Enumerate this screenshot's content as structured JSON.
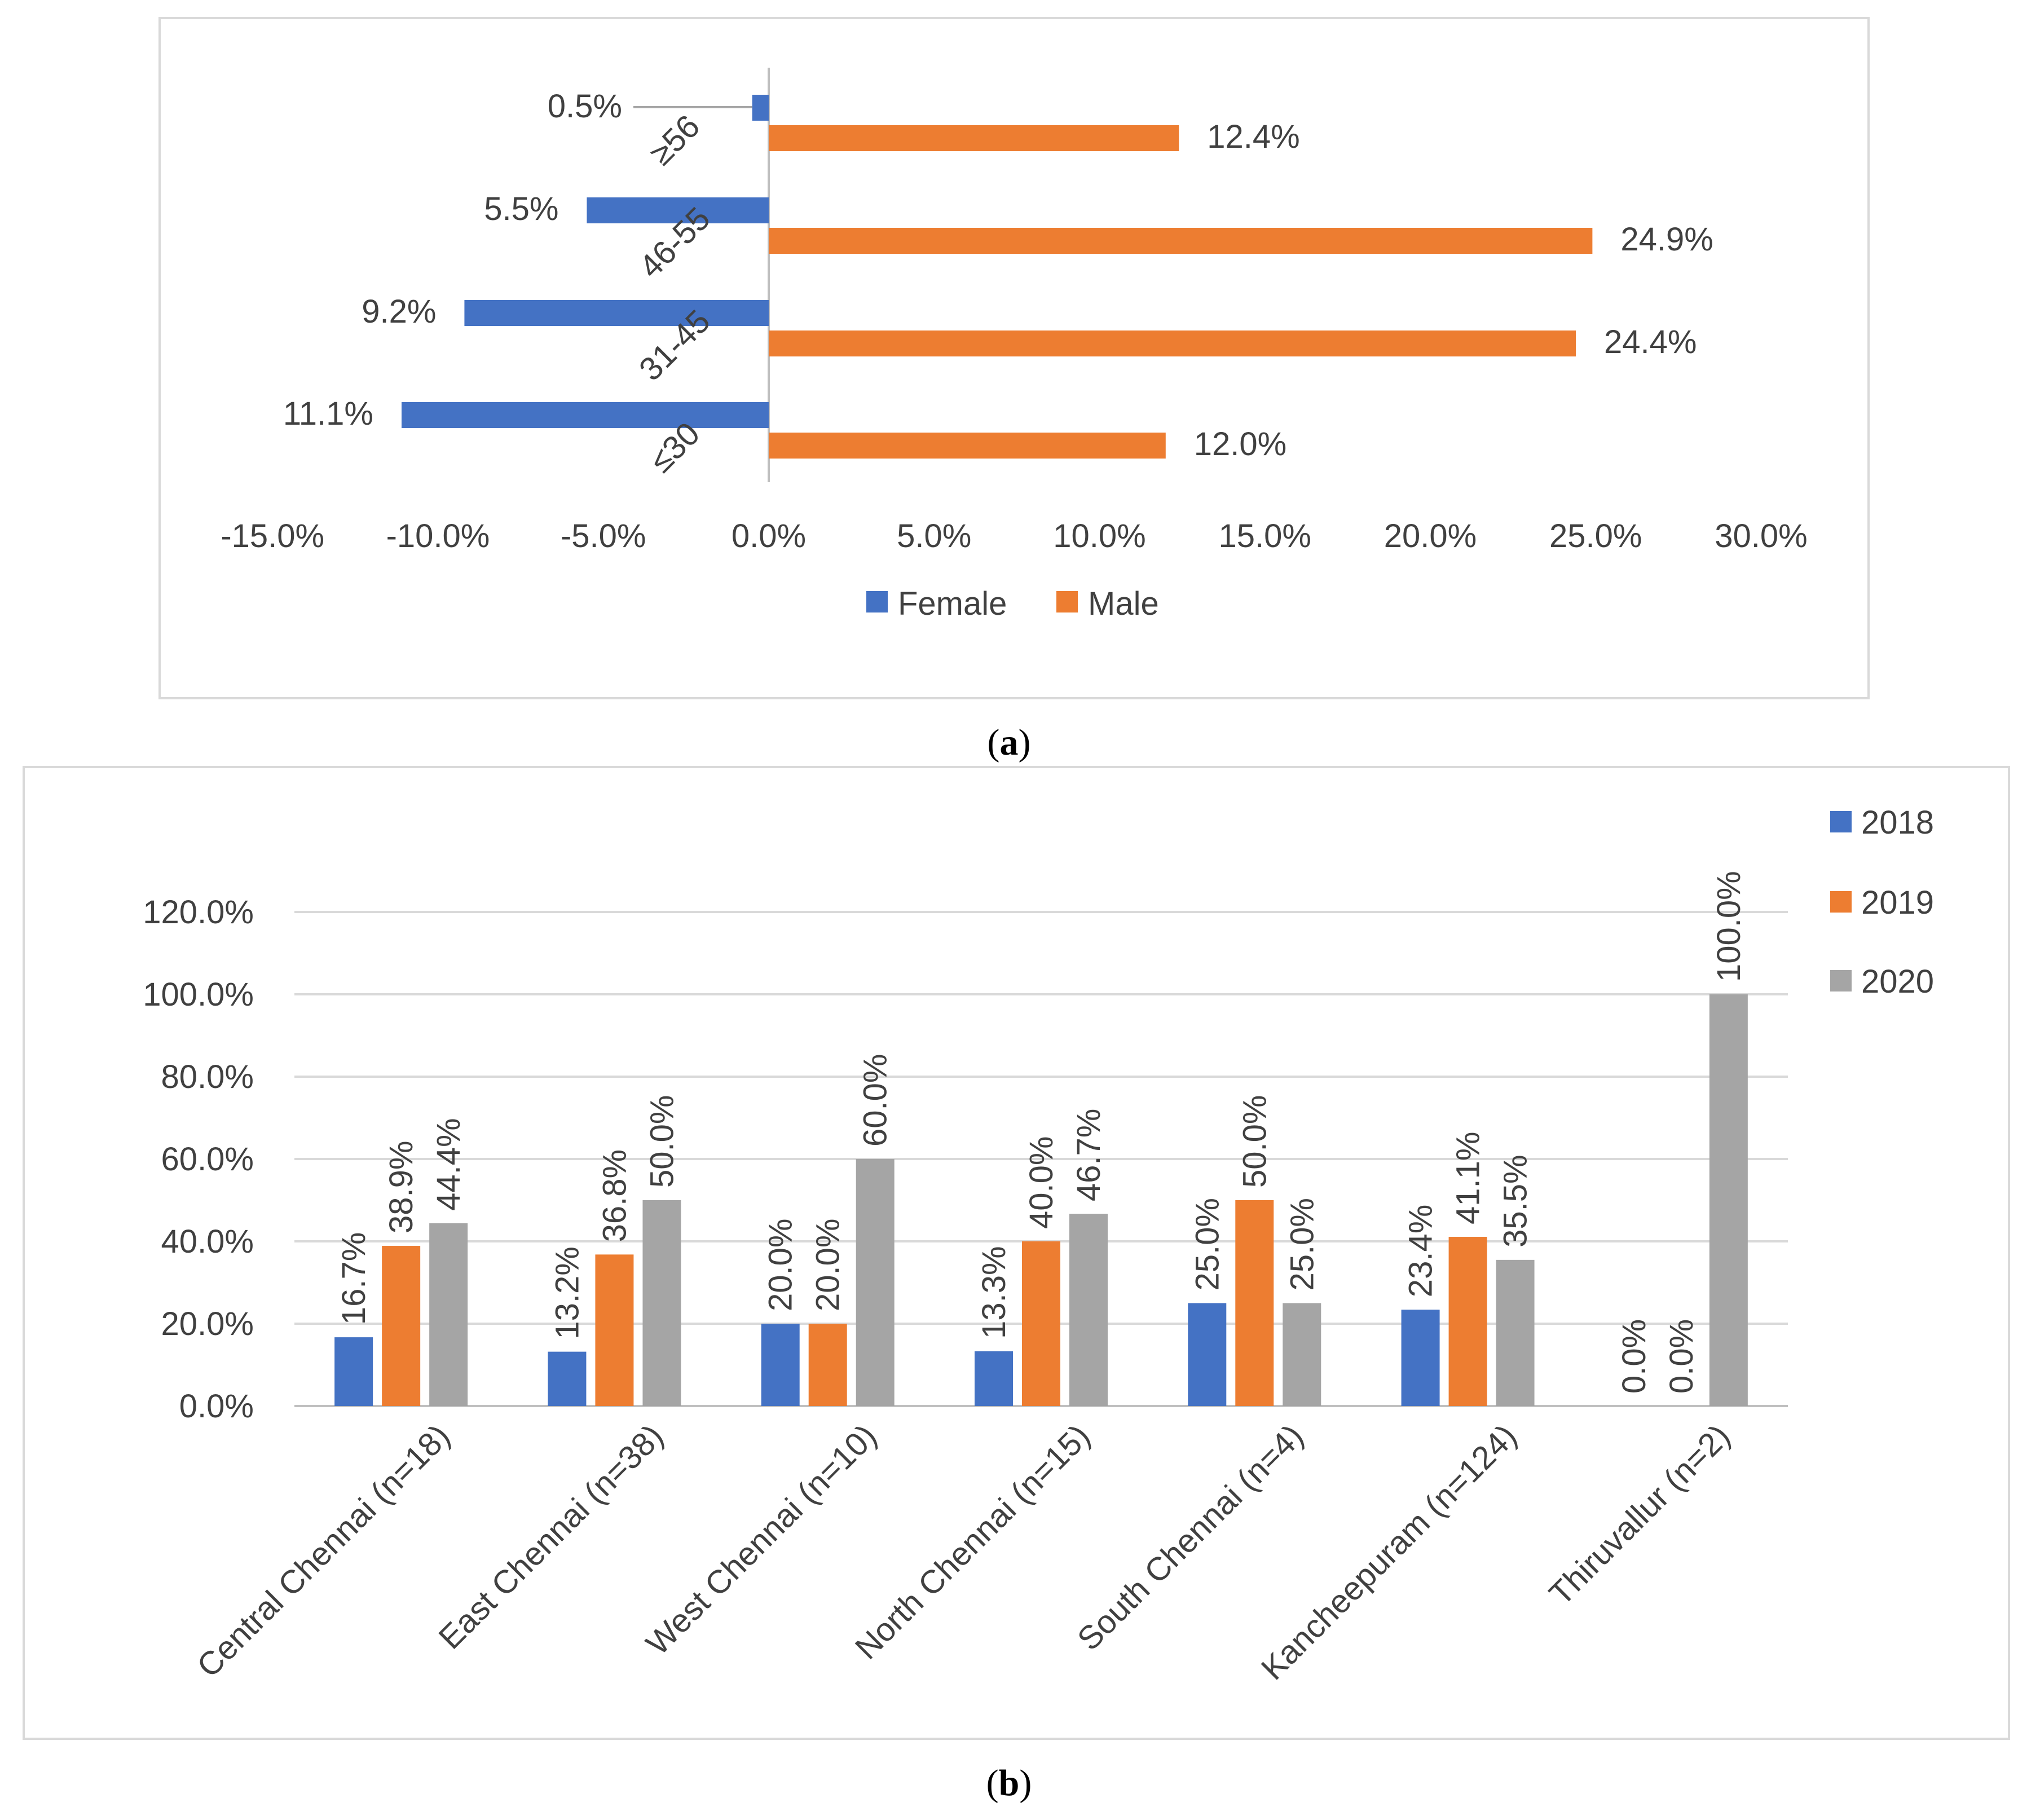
{
  "colors": {
    "female": "#4472c4",
    "male": "#ed7d31",
    "y2018": "#4472c4",
    "y2019": "#ed7d31",
    "y2020": "#a5a5a5",
    "text": "#404040",
    "axis": "#bfbfbf",
    "grid": "#d9d9d9",
    "frame": "#d9d9d9"
  },
  "captions": {
    "a": {
      "open": "(",
      "letter": "a",
      "close": ")"
    },
    "b": {
      "open": "(",
      "letter": "b",
      "close": ")"
    }
  },
  "chart_data": [
    {
      "id": "a",
      "type": "bar",
      "orientation": "horizontal",
      "categories": [
        "≥56",
        "46-55",
        "31-45",
        "≤30"
      ],
      "series": [
        {
          "name": "Female",
          "values": [
            -0.5,
            -5.5,
            -9.2,
            -11.1
          ],
          "labels": [
            "0.5%",
            "5.5%",
            "9.2%",
            "11.1%"
          ]
        },
        {
          "name": "Male",
          "values": [
            12.4,
            24.9,
            24.4,
            12.0
          ],
          "labels": [
            "12.4%",
            "24.9%",
            "24.4%",
            "12.0%"
          ]
        }
      ],
      "xlim": [
        -15,
        30
      ],
      "xticks": [
        -15,
        -10,
        -5,
        0,
        5,
        10,
        15,
        20,
        25,
        30
      ],
      "xtick_labels": [
        "-15.0%",
        "-10.0%",
        "-5.0%",
        "0.0%",
        "5.0%",
        "10.0%",
        "15.0%",
        "20.0%",
        "25.0%",
        "30.0%"
      ],
      "legend": [
        "Female",
        "Male"
      ],
      "legend_position": "bottom",
      "unit": "%"
    },
    {
      "id": "b",
      "type": "bar",
      "orientation": "vertical",
      "categories": [
        "Central Chennai (n=18)",
        "East Chennai (n=38)",
        "West Chennai (n=10)",
        "North Chennai (n=15)",
        "South Chennai (n=4)",
        "Kancheepuram (n=124)",
        "Thiruvallur (n=2)"
      ],
      "series": [
        {
          "name": "2018",
          "values": [
            16.7,
            13.2,
            20.0,
            13.3,
            25.0,
            23.4,
            0.0
          ],
          "labels": [
            "16.7%",
            "13.2%",
            "20.0%",
            "13.3%",
            "25.0%",
            "23.4%",
            "0.0%"
          ]
        },
        {
          "name": "2019",
          "values": [
            38.9,
            36.8,
            20.0,
            40.0,
            50.0,
            41.1,
            0.0
          ],
          "labels": [
            "38.9%",
            "36.8%",
            "20.0%",
            "40.0%",
            "50.0%",
            "41.1%",
            "0.0%"
          ]
        },
        {
          "name": "2020",
          "values": [
            44.4,
            50.0,
            60.0,
            46.7,
            25.0,
            35.5,
            100.0
          ],
          "labels": [
            "44.4%",
            "50.0%",
            "60.0%",
            "46.7%",
            "25.0%",
            "35.5%",
            "100.0%"
          ]
        }
      ],
      "ylim": [
        0,
        120
      ],
      "yticks": [
        0,
        20,
        40,
        60,
        80,
        100,
        120
      ],
      "ytick_labels": [
        "0.0%",
        "20.0%",
        "40.0%",
        "60.0%",
        "80.0%",
        "100.0%",
        "120.0%"
      ],
      "legend": [
        "2018",
        "2019",
        "2020"
      ],
      "legend_position": "top-right",
      "grid": true,
      "unit": "%"
    }
  ]
}
